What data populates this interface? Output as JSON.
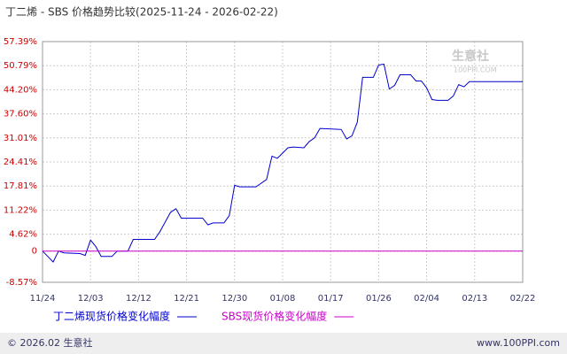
{
  "chart_data": {
    "type": "line",
    "title": "丁二烯 - SBS 价格趋势比较(2025-11-24 - 2026-02-22)",
    "xlim": [
      "11/24",
      "02/22"
    ],
    "xticks": [
      "11/24",
      "12/03",
      "12/12",
      "12/21",
      "12/30",
      "01/08",
      "01/17",
      "01/26",
      "02/04",
      "02/13",
      "02/22"
    ],
    "ylim": [
      -8.57,
      57.39
    ],
    "yticks": [
      {
        "value": -8.57,
        "label": "-8.57%"
      },
      0,
      {
        "value": 4.62,
        "label": "4.62%"
      },
      {
        "value": 11.22,
        "label": "11.22%"
      },
      {
        "value": 17.81,
        "label": "17.81%"
      },
      {
        "value": 24.41,
        "label": "24.41%"
      },
      {
        "value": 31.01,
        "label": "31.01%"
      },
      {
        "value": 37.6,
        "label": "37.60%"
      },
      {
        "value": 44.2,
        "label": "44.20%"
      },
      {
        "value": 50.79,
        "label": "50.79%"
      },
      {
        "value": 57.39,
        "label": "57.39%"
      }
    ],
    "grid": true,
    "series": [
      {
        "name": "丁二烯现货价格变化幅度",
        "color": "#0000cc",
        "x": [
          "11/24",
          "11/25",
          "11/26",
          "11/27",
          "11/28",
          "12/01",
          "12/02",
          "12/03",
          "12/04",
          "12/05",
          "12/07",
          "12/08",
          "12/10",
          "12/11",
          "12/15",
          "12/16",
          "12/18",
          "12/19",
          "12/20",
          "12/24",
          "12/25",
          "12/26",
          "12/28",
          "12/29",
          "12/30",
          "12/31",
          "01/03",
          "01/05",
          "01/06",
          "01/07",
          "01/09",
          "01/10",
          "01/12",
          "01/13",
          "01/14",
          "01/15",
          "01/19",
          "01/20",
          "01/21",
          "01/22",
          "01/23",
          "01/25",
          "01/26",
          "01/27",
          "01/28",
          "01/29",
          "01/30",
          "02/01",
          "02/02",
          "02/03",
          "02/04",
          "02/05",
          "02/06",
          "02/08",
          "02/09",
          "02/10",
          "02/11",
          "02/12",
          "02/22"
        ],
        "values": [
          0,
          -1.5,
          -3,
          0,
          -0.5,
          -0.7,
          -1.2,
          3,
          1.2,
          -1.5,
          -1.5,
          0,
          0,
          3.2,
          3.2,
          5.3,
          10.6,
          11.6,
          9,
          9,
          7.2,
          7.7,
          7.7,
          9.7,
          18,
          17.6,
          17.6,
          19.6,
          26,
          25.4,
          28.3,
          28.5,
          28.3,
          30,
          31,
          33.6,
          33.3,
          30.7,
          31.6,
          35.3,
          47.6,
          47.6,
          51,
          51.2,
          44.4,
          45.4,
          48.3,
          48.3,
          46.6,
          46.6,
          44.7,
          41.5,
          41.3,
          41.3,
          42.5,
          45.6,
          45,
          46.4,
          46.4
        ]
      },
      {
        "name": "SBS现货价格变化幅度",
        "color": "#cc00cc",
        "x": [
          "11/24",
          "02/22"
        ],
        "values": [
          0,
          0
        ]
      }
    ]
  },
  "watermark": {
    "name": "生意社",
    "site": "100PPI.COM"
  },
  "footer": {
    "copyright": "© 2026.02 生意社",
    "url": "www.100PPI.com"
  }
}
